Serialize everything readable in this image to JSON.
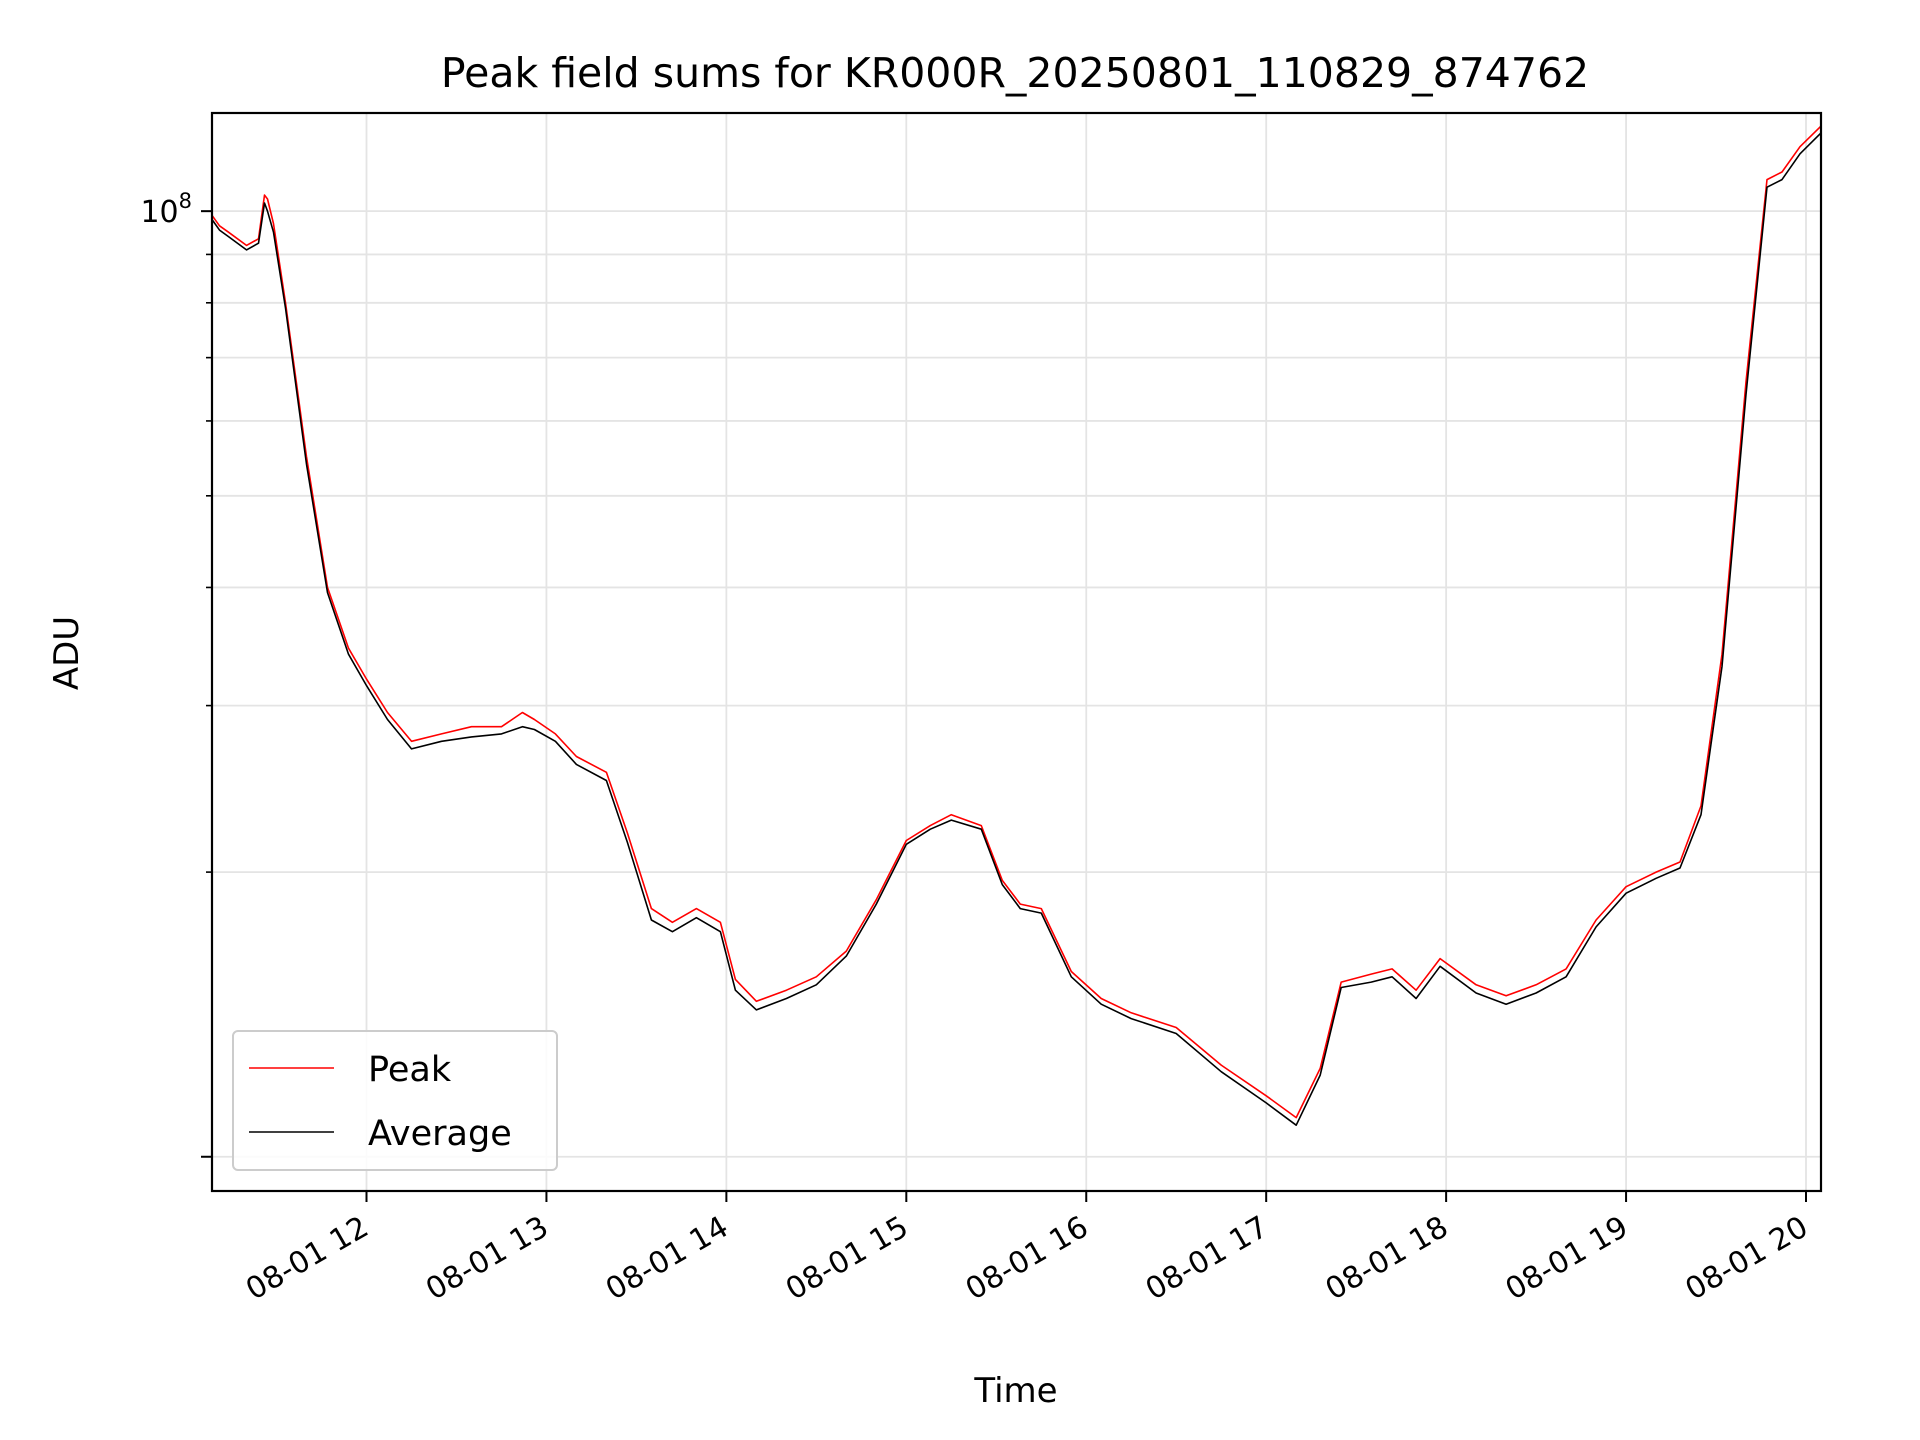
{
  "chart_data": {
    "type": "line",
    "title": "Peak field sums for KR000R_20250801_110829_874762",
    "xlabel": "Time",
    "ylabel": "ADU",
    "y_scale": "log",
    "ylim": [
      9200000,
      127000000
    ],
    "xlim": [
      "2025-08-01 11:08:29",
      "2025-08-01 20:05:00"
    ],
    "x_ticks": [
      "08-01 12",
      "08-01 13",
      "08-01 14",
      "08-01 15",
      "08-01 16",
      "08-01 17",
      "08-01 18",
      "08-01 19",
      "08-01 20"
    ],
    "y_ticks": [
      {
        "value": 100000000,
        "base": "10",
        "exponent": "8"
      }
    ],
    "grid": true,
    "legend_position": "lower-left",
    "series": [
      {
        "name": "Peak",
        "color": "#ff0000",
        "x": [
          "2025-08-01 11:08:29",
          "2025-08-01 11:11",
          "2025-08-01 11:14",
          "2025-08-01 11:20",
          "2025-08-01 11:24",
          "2025-08-01 11:26",
          "2025-08-01 11:27",
          "2025-08-01 11:29",
          "2025-08-01 11:33",
          "2025-08-01 11:40",
          "2025-08-01 11:47",
          "2025-08-01 11:54",
          "2025-08-01 12:00",
          "2025-08-01 12:07",
          "2025-08-01 12:15",
          "2025-08-01 12:25",
          "2025-08-01 12:35",
          "2025-08-01 12:45",
          "2025-08-01 12:52",
          "2025-08-01 12:56",
          "2025-08-01 13:03",
          "2025-08-01 13:10",
          "2025-08-01 13:20",
          "2025-08-01 13:27",
          "2025-08-01 13:35",
          "2025-08-01 13:42",
          "2025-08-01 13:50",
          "2025-08-01 13:58",
          "2025-08-01 14:03",
          "2025-08-01 14:10",
          "2025-08-01 14:20",
          "2025-08-01 14:30",
          "2025-08-01 14:40",
          "2025-08-01 14:50",
          "2025-08-01 15:00",
          "2025-08-01 15:08",
          "2025-08-01 15:15",
          "2025-08-01 15:25",
          "2025-08-01 15:32",
          "2025-08-01 15:38",
          "2025-08-01 15:45",
          "2025-08-01 15:55",
          "2025-08-01 16:05",
          "2025-08-01 16:15",
          "2025-08-01 16:30",
          "2025-08-01 16:45",
          "2025-08-01 17:00",
          "2025-08-01 17:10",
          "2025-08-01 17:18",
          "2025-08-01 17:25",
          "2025-08-01 17:35",
          "2025-08-01 17:42",
          "2025-08-01 17:50",
          "2025-08-01 17:58",
          "2025-08-01 18:10",
          "2025-08-01 18:20",
          "2025-08-01 18:30",
          "2025-08-01 18:40",
          "2025-08-01 18:50",
          "2025-08-01 19:00",
          "2025-08-01 19:10",
          "2025-08-01 19:18",
          "2025-08-01 19:25",
          "2025-08-01 19:32",
          "2025-08-01 19:40",
          "2025-08-01 19:47",
          "2025-08-01 19:52",
          "2025-08-01 19:58",
          "2025-08-01 20:05"
        ],
        "y": [
          99000000,
          96500000,
          95000000,
          92000000,
          93500000,
          104000000,
          103000000,
          97000000,
          80000000,
          55000000,
          40000000,
          34500000,
          32000000,
          29500000,
          27500000,
          28000000,
          28500000,
          28500000,
          29500000,
          29000000,
          28000000,
          26500000,
          25500000,
          22000000,
          18300000,
          17700000,
          18300000,
          17700000,
          15400000,
          14600000,
          15000000,
          15500000,
          16500000,
          18700000,
          21600000,
          22400000,
          23000000,
          22400000,
          19600000,
          18500000,
          18300000,
          15700000,
          14700000,
          14200000,
          13700000,
          12500000,
          11600000,
          11000000,
          12400000,
          15300000,
          15600000,
          15800000,
          15000000,
          16200000,
          15200000,
          14800000,
          15200000,
          15800000,
          17800000,
          19300000,
          20000000,
          20500000,
          23500000,
          34000000,
          66000000,
          108000000,
          110000000,
          117000000,
          123000000
        ]
      },
      {
        "name": "Average",
        "color": "#000000",
        "x": [
          "2025-08-01 11:08:29",
          "2025-08-01 11:11",
          "2025-08-01 11:14",
          "2025-08-01 11:20",
          "2025-08-01 11:24",
          "2025-08-01 11:26",
          "2025-08-01 11:27",
          "2025-08-01 11:29",
          "2025-08-01 11:33",
          "2025-08-01 11:40",
          "2025-08-01 11:47",
          "2025-08-01 11:54",
          "2025-08-01 12:00",
          "2025-08-01 12:07",
          "2025-08-01 12:15",
          "2025-08-01 12:25",
          "2025-08-01 12:35",
          "2025-08-01 12:45",
          "2025-08-01 12:52",
          "2025-08-01 12:56",
          "2025-08-01 13:03",
          "2025-08-01 13:10",
          "2025-08-01 13:20",
          "2025-08-01 13:27",
          "2025-08-01 13:35",
          "2025-08-01 13:42",
          "2025-08-01 13:50",
          "2025-08-01 13:58",
          "2025-08-01 14:03",
          "2025-08-01 14:10",
          "2025-08-01 14:20",
          "2025-08-01 14:30",
          "2025-08-01 14:40",
          "2025-08-01 14:50",
          "2025-08-01 15:00",
          "2025-08-01 15:08",
          "2025-08-01 15:15",
          "2025-08-01 15:25",
          "2025-08-01 15:32",
          "2025-08-01 15:38",
          "2025-08-01 15:45",
          "2025-08-01 15:55",
          "2025-08-01 16:05",
          "2025-08-01 16:15",
          "2025-08-01 16:30",
          "2025-08-01 16:45",
          "2025-08-01 17:00",
          "2025-08-01 17:10",
          "2025-08-01 17:18",
          "2025-08-01 17:25",
          "2025-08-01 17:35",
          "2025-08-01 17:42",
          "2025-08-01 17:50",
          "2025-08-01 17:58",
          "2025-08-01 18:10",
          "2025-08-01 18:20",
          "2025-08-01 18:30",
          "2025-08-01 18:40",
          "2025-08-01 18:50",
          "2025-08-01 19:00",
          "2025-08-01 19:10",
          "2025-08-01 19:18",
          "2025-08-01 19:25",
          "2025-08-01 19:32",
          "2025-08-01 19:40",
          "2025-08-01 19:47",
          "2025-08-01 19:52",
          "2025-08-01 19:58",
          "2025-08-01 20:05"
        ],
        "y": [
          98000000,
          95500000,
          94000000,
          91000000,
          92500000,
          102000000,
          100000000,
          95000000,
          79000000,
          54000000,
          39500000,
          34000000,
          31500000,
          29000000,
          27000000,
          27500000,
          27800000,
          28000000,
          28500000,
          28300000,
          27500000,
          26000000,
          25000000,
          21500000,
          17800000,
          17300000,
          17900000,
          17300000,
          15000000,
          14300000,
          14700000,
          15200000,
          16300000,
          18500000,
          21400000,
          22200000,
          22700000,
          22200000,
          19400000,
          18300000,
          18100000,
          15500000,
          14500000,
          14000000,
          13500000,
          12300000,
          11400000,
          10800000,
          12200000,
          15100000,
          15300000,
          15500000,
          14700000,
          15900000,
          14900000,
          14500000,
          14900000,
          15500000,
          17500000,
          19000000,
          19700000,
          20200000,
          23000000,
          33000000,
          64000000,
          106000000,
          108000000,
          115000000,
          121000000
        ]
      }
    ]
  }
}
